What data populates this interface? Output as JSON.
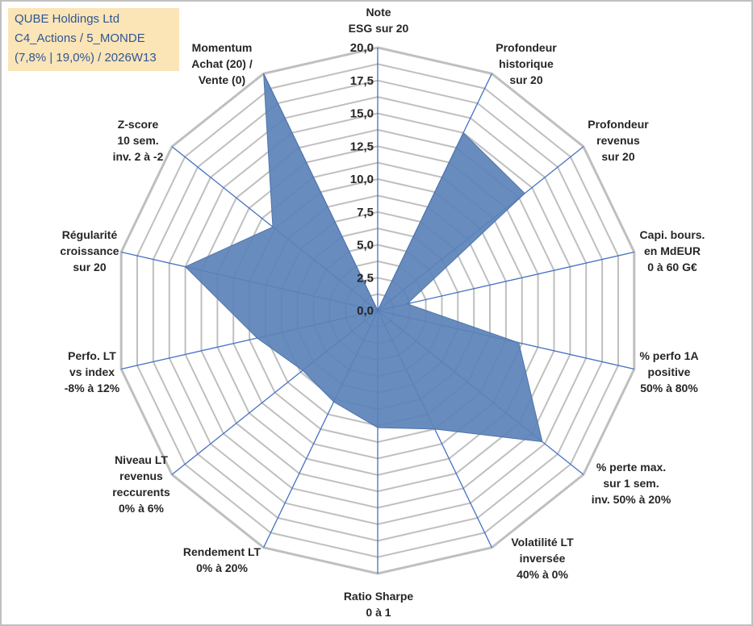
{
  "info": {
    "company": "QUBE Holdings Ltd",
    "portfolio": "C4_Actions / 5_MONDE",
    "stats": "(7,8% | 19,0%) / 2026W13"
  },
  "chart_data": {
    "type": "radar",
    "title": "",
    "rmin": 0,
    "rmax": 20,
    "ticks": [
      "0,0",
      "2,5",
      "5,0",
      "7,5",
      "10,0",
      "12,5",
      "15,0",
      "17,5",
      "20,0"
    ],
    "tick_values": [
      0,
      2.5,
      5,
      7.5,
      10,
      12.5,
      15,
      17.5,
      20
    ],
    "axes": [
      {
        "label": [
          "Note",
          "ESG sur 20"
        ],
        "value": 0
      },
      {
        "label": [
          "Profondeur",
          "historique",
          "sur 20"
        ],
        "value": 15
      },
      {
        "label": [
          "Profondeur",
          "revenus",
          "sur 20"
        ],
        "value": 14.3
      },
      {
        "label": [
          "Capi. bours.",
          "en MdEUR",
          "0 à 60 G€"
        ],
        "value": 2.3
      },
      {
        "label": [
          "% perfo 1A",
          "positive",
          "50% à 80%"
        ],
        "value": 11
      },
      {
        "label": [
          "% perte max.",
          "sur 1 sem.",
          "inv. 50% à 20%"
        ],
        "value": 16
      },
      {
        "label": [
          "Volatilité LT",
          "inversée",
          "40% à 0%"
        ],
        "value": 10
      },
      {
        "label": [
          "Ratio Sharpe",
          "0 à 1"
        ],
        "value": 8.9
      },
      {
        "label": [
          "Rendement LT",
          "0% à 20%"
        ],
        "value": 7.7
      },
      {
        "label": [
          "Niveau LT",
          "revenus",
          "reccurents",
          "0% à 6%"
        ],
        "value": 7.3
      },
      {
        "label": [
          "Perfo. LT",
          "vs index",
          "-8% à 12%"
        ],
        "value": 9.4
      },
      {
        "label": [
          "Régularité",
          "croissance",
          "sur 20"
        ],
        "value": 15
      },
      {
        "label": [
          "Z-score",
          "10 sem.",
          "inv. 2 à -2"
        ],
        "value": 10.2
      },
      {
        "label": [
          "Momentum",
          "Achat (20) /",
          "Vente (0)"
        ],
        "value": 20
      }
    ],
    "fill_color": "#5b82b8",
    "grid_color": "#bfbfbf",
    "spoke_color": "#4472c4"
  }
}
